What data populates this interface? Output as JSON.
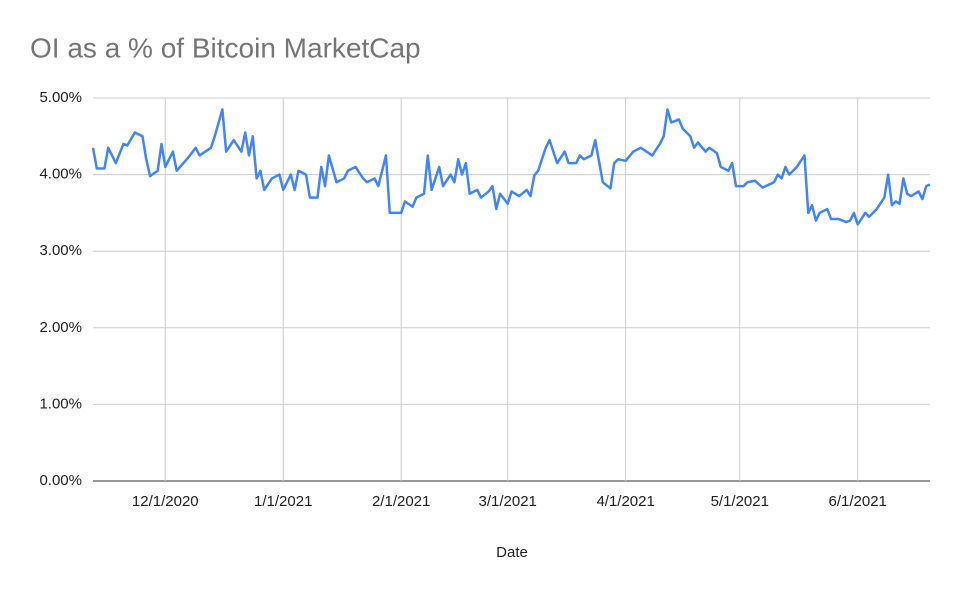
{
  "chart_data": {
    "type": "line",
    "title": "OI as a % of Bitcoin MarketCap",
    "x_label": "Date",
    "x": [
      "11/12/2020",
      "11/13/2020",
      "11/15/2020",
      "11/16/2020",
      "11/18/2020",
      "11/20/2020",
      "11/21/2020",
      "11/23/2020",
      "11/25/2020",
      "11/26/2020",
      "11/27/2020",
      "11/29/2020",
      "11/30/2020",
      "12/1/2020",
      "12/3/2020",
      "12/4/2020",
      "12/7/2020",
      "12/9/2020",
      "12/10/2020",
      "12/13/2020",
      "12/14/2020",
      "12/16/2020",
      "12/17/2020",
      "12/19/2020",
      "12/21/2020",
      "12/22/2020",
      "12/23/2020",
      "12/24/2020",
      "12/25/2020",
      "12/26/2020",
      "12/27/2020",
      "12/29/2020",
      "12/31/2020",
      "1/1/2021",
      "1/3/2021",
      "1/4/2021",
      "1/5/2021",
      "1/7/2021",
      "1/8/2021",
      "1/10/2021",
      "1/11/2021",
      "1/12/2021",
      "1/13/2021",
      "1/15/2021",
      "1/17/2021",
      "1/18/2021",
      "1/20/2021",
      "1/22/2021",
      "1/23/2021",
      "1/25/2021",
      "1/26/2021",
      "1/27/2021",
      "1/28/2021",
      "1/29/2021",
      "2/1/2021",
      "2/2/2021",
      "2/4/2021",
      "2/5/2021",
      "2/7/2021",
      "2/8/2021",
      "2/9/2021",
      "2/11/2021",
      "2/12/2021",
      "2/14/2021",
      "2/15/2021",
      "2/16/2021",
      "2/17/2021",
      "2/18/2021",
      "2/19/2021",
      "2/21/2021",
      "2/22/2021",
      "2/24/2021",
      "2/25/2021",
      "2/26/2021",
      "2/27/2021",
      "3/1/2021",
      "3/2/2021",
      "3/4/2021",
      "3/6/2021",
      "3/7/2021",
      "3/8/2021",
      "3/9/2021",
      "3/11/2021",
      "3/12/2021",
      "3/14/2021",
      "3/16/2021",
      "3/17/2021",
      "3/19/2021",
      "3/20/2021",
      "3/21/2021",
      "3/23/2021",
      "3/24/2021",
      "3/26/2021",
      "3/28/2021",
      "3/29/2021",
      "3/30/2021",
      "4/1/2021",
      "4/3/2021",
      "4/5/2021",
      "4/8/2021",
      "4/10/2021",
      "4/11/2021",
      "4/12/2021",
      "4/13/2021",
      "4/15/2021",
      "4/16/2021",
      "4/18/2021",
      "4/19/2021",
      "4/20/2021",
      "4/22/2021",
      "4/23/2021",
      "4/25/2021",
      "4/26/2021",
      "4/28/2021",
      "4/29/2021",
      "4/30/2021",
      "5/2/2021",
      "5/3/2021",
      "5/5/2021",
      "5/7/2021",
      "5/10/2021",
      "5/11/2021",
      "5/12/2021",
      "5/13/2021",
      "5/14/2021",
      "5/16/2021",
      "5/18/2021",
      "5/19/2021",
      "5/20/2021",
      "5/21/2021",
      "5/22/2021",
      "5/24/2021",
      "5/25/2021",
      "5/27/2021",
      "5/29/2021",
      "5/30/2021",
      "5/31/2021",
      "6/1/2021",
      "6/3/2021",
      "6/4/2021",
      "6/6/2021",
      "6/8/2021",
      "6/9/2021",
      "6/10/2021",
      "6/11/2021",
      "6/12/2021",
      "6/13/2021",
      "6/14/2021",
      "6/15/2021",
      "6/17/2021",
      "6/18/2021",
      "6/19/2021",
      "6/20/2021"
    ],
    "series": [
      {
        "name": "OI as a % of Bitcoin MarketCap",
        "color": "#4285f4",
        "values": [
          4.35,
          4.08,
          4.08,
          4.35,
          4.15,
          4.4,
          4.38,
          4.55,
          4.5,
          4.2,
          3.98,
          4.05,
          4.4,
          4.1,
          4.3,
          4.05,
          4.22,
          4.35,
          4.25,
          4.35,
          4.5,
          4.85,
          4.3,
          4.45,
          4.3,
          4.55,
          4.25,
          4.5,
          3.95,
          4.05,
          3.8,
          3.95,
          4.0,
          3.8,
          4.0,
          3.8,
          4.05,
          4.0,
          3.7,
          3.7,
          4.1,
          3.85,
          4.25,
          3.9,
          3.95,
          4.05,
          4.1,
          3.95,
          3.9,
          3.95,
          3.85,
          4.05,
          4.25,
          3.5,
          3.5,
          3.65,
          3.58,
          3.7,
          3.75,
          4.25,
          3.8,
          4.1,
          3.85,
          4.0,
          3.9,
          4.2,
          4.0,
          4.15,
          3.75,
          3.8,
          3.7,
          3.78,
          3.85,
          3.55,
          3.75,
          3.62,
          3.78,
          3.72,
          3.8,
          3.72,
          3.99,
          4.05,
          4.35,
          4.45,
          4.15,
          4.3,
          4.15,
          4.15,
          4.25,
          4.2,
          4.25,
          4.45,
          3.9,
          3.82,
          4.15,
          4.2,
          4.18,
          4.3,
          4.35,
          4.25,
          4.4,
          4.5,
          4.85,
          4.68,
          4.72,
          4.6,
          4.5,
          4.35,
          4.42,
          4.3,
          4.35,
          4.28,
          4.1,
          4.05,
          4.15,
          3.85,
          3.85,
          3.9,
          3.92,
          3.83,
          3.9,
          4.0,
          3.95,
          4.1,
          4.0,
          4.1,
          4.25,
          3.5,
          3.6,
          3.4,
          3.5,
          3.55,
          3.42,
          3.42,
          3.38,
          3.4,
          3.5,
          3.35,
          3.5,
          3.45,
          3.55,
          3.7,
          4.0,
          3.6,
          3.65,
          3.62,
          3.95,
          3.75,
          3.72,
          3.78,
          3.68,
          3.85,
          3.87
        ]
      }
    ],
    "xlim": [
      "11/12/2020",
      "6/20/2021"
    ],
    "xticks": [
      "12/1/2020",
      "1/1/2021",
      "2/1/2021",
      "3/1/2021",
      "4/1/2021",
      "5/1/2021",
      "6/1/2021"
    ],
    "ylim": [
      0,
      5
    ],
    "yticks": [
      {
        "value": 0,
        "label": "0.00%"
      },
      {
        "value": 1,
        "label": "1.00%"
      },
      {
        "value": 2,
        "label": "2.00%"
      },
      {
        "value": 3,
        "label": "3.00%"
      },
      {
        "value": 4,
        "label": "4.00%"
      },
      {
        "value": 5,
        "label": "5.00%"
      }
    ],
    "grid": true
  }
}
